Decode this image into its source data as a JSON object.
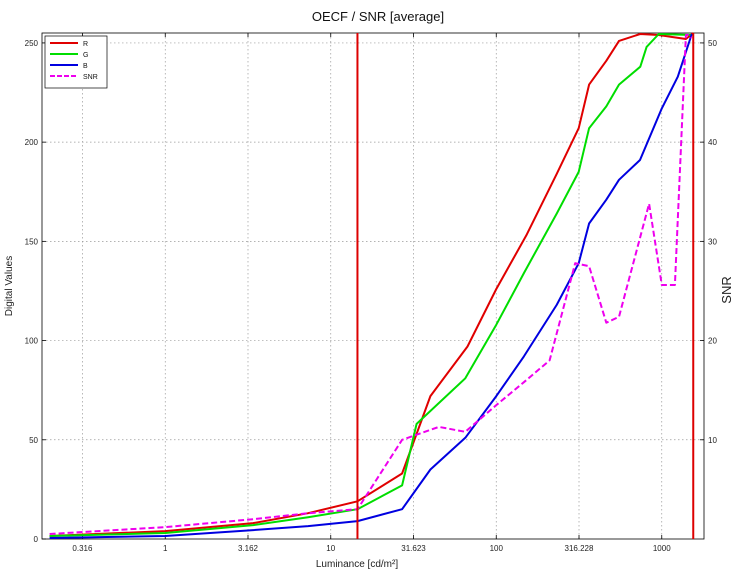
{
  "chart_data": {
    "type": "line",
    "title": "OECF / SNR [average]",
    "xlabel": "Luminance [cd/m²]",
    "ylabel": "Digital Values",
    "y2label": "SNR",
    "x_scale": "log",
    "xlim": [
      0.18,
      1800
    ],
    "ylim": [
      0,
      255
    ],
    "y2lim": [
      0,
      51
    ],
    "x_ticks": [
      {
        "value": 0.316,
        "label": "0.316"
      },
      {
        "value": 1,
        "label": "1"
      },
      {
        "value": 3.162,
        "label": "3.162"
      },
      {
        "value": 10,
        "label": "10"
      },
      {
        "value": 31.623,
        "label": "31.623"
      },
      {
        "value": 100,
        "label": "100"
      },
      {
        "value": 316.228,
        "label": "316.228"
      },
      {
        "value": 1000,
        "label": "1000"
      }
    ],
    "y_ticks": [
      0,
      50,
      100,
      150,
      200,
      250
    ],
    "y2_ticks": [
      10,
      20,
      30,
      40,
      50
    ],
    "grid": true,
    "legend_position": "top-left",
    "vlines": [
      14.5,
      1550
    ],
    "vline_color": "#dd0000",
    "series": [
      {
        "name": "R",
        "color": "#e00000",
        "dash": false,
        "axis": "left",
        "x": [
          0.2,
          1,
          3.4,
          7.3,
          14.5,
          27,
          40,
          67,
          100,
          152,
          232,
          315,
          364,
          462,
          552,
          741,
          960,
          1156,
          1400,
          1550
        ],
        "y": [
          1.5,
          4,
          8,
          13,
          19,
          33,
          72,
          97,
          126,
          153,
          184,
          207,
          229,
          241,
          251,
          254.5,
          254,
          253,
          252,
          255
        ]
      },
      {
        "name": "G",
        "color": "#00dd00",
        "dash": false,
        "axis": "left",
        "x": [
          0.2,
          1,
          3.4,
          7.3,
          14.5,
          27,
          33,
          65,
          100,
          147,
          232,
          315,
          364,
          462,
          552,
          742,
          810,
          960,
          1520
        ],
        "y": [
          1.5,
          3,
          7,
          11,
          15,
          27,
          58,
          81,
          108,
          134,
          164,
          185,
          207,
          218,
          229,
          238,
          248,
          254.5,
          254
        ]
      },
      {
        "name": "B",
        "color": "#0000e0",
        "dash": false,
        "axis": "left",
        "x": [
          0.2,
          1,
          3.4,
          7.3,
          14.5,
          27,
          40,
          65,
          100,
          147,
          232,
          315,
          364,
          462,
          552,
          739,
          1000,
          1250,
          1520
        ],
        "y": [
          0.5,
          1.5,
          4.5,
          6.5,
          9,
          15,
          35,
          51,
          72,
          92,
          118,
          139,
          159,
          171,
          181,
          191,
          217,
          233,
          254.5
        ]
      },
      {
        "name": "SNR",
        "color": "#ee00ee",
        "dash": true,
        "axis": "right",
        "x": [
          0.2,
          1,
          3.4,
          7.3,
          14.5,
          27,
          45,
          65,
          100,
          147,
          210,
          300,
          364,
          462,
          552,
          839,
          1000,
          1201,
          1400,
          1450,
          1520
        ],
        "y": [
          0.5,
          1.2,
          2,
          2.6,
          3,
          10,
          11.3,
          10.8,
          13.5,
          15.8,
          18,
          27.8,
          27.5,
          21.8,
          22.4,
          33.8,
          25.6,
          25.6,
          50.8,
          50.8,
          50.5
        ]
      }
    ]
  }
}
